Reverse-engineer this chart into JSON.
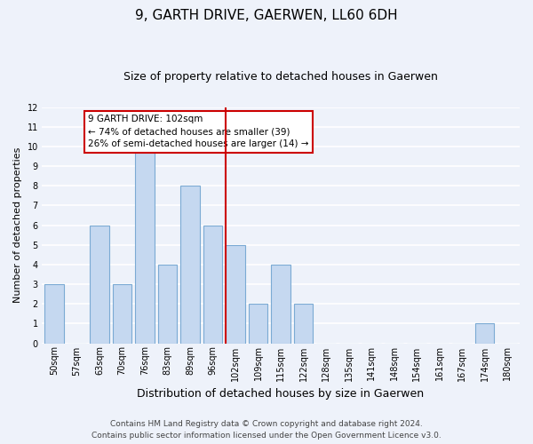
{
  "title": "9, GARTH DRIVE, GAERWEN, LL60 6DH",
  "subtitle": "Size of property relative to detached houses in Gaerwen",
  "xlabel": "Distribution of detached houses by size in Gaerwen",
  "ylabel": "Number of detached properties",
  "categories": [
    "50sqm",
    "57sqm",
    "63sqm",
    "70sqm",
    "76sqm",
    "83sqm",
    "89sqm",
    "96sqm",
    "102sqm",
    "109sqm",
    "115sqm",
    "122sqm",
    "128sqm",
    "135sqm",
    "141sqm",
    "148sqm",
    "154sqm",
    "161sqm",
    "167sqm",
    "174sqm",
    "180sqm"
  ],
  "values": [
    3,
    0,
    6,
    3,
    10,
    4,
    8,
    6,
    5,
    2,
    4,
    2,
    0,
    0,
    0,
    0,
    0,
    0,
    0,
    1,
    0
  ],
  "bar_color": "#c5d8f0",
  "bar_edgecolor": "#7baad4",
  "highlight_index": 8,
  "highlight_line_color": "#cc0000",
  "annotation_text": "9 GARTH DRIVE: 102sqm\n← 74% of detached houses are smaller (39)\n26% of semi-detached houses are larger (14) →",
  "annotation_box_edgecolor": "#cc0000",
  "ylim": [
    0,
    12
  ],
  "yticks": [
    0,
    1,
    2,
    3,
    4,
    5,
    6,
    7,
    8,
    9,
    10,
    11,
    12
  ],
  "footer_line1": "Contains HM Land Registry data © Crown copyright and database right 2024.",
  "footer_line2": "Contains public sector information licensed under the Open Government Licence v3.0.",
  "background_color": "#eef2fa",
  "grid_color": "#ffffff",
  "title_fontsize": 11,
  "subtitle_fontsize": 9,
  "ylabel_fontsize": 8,
  "xlabel_fontsize": 9,
  "tick_fontsize": 7,
  "footer_fontsize": 6.5
}
